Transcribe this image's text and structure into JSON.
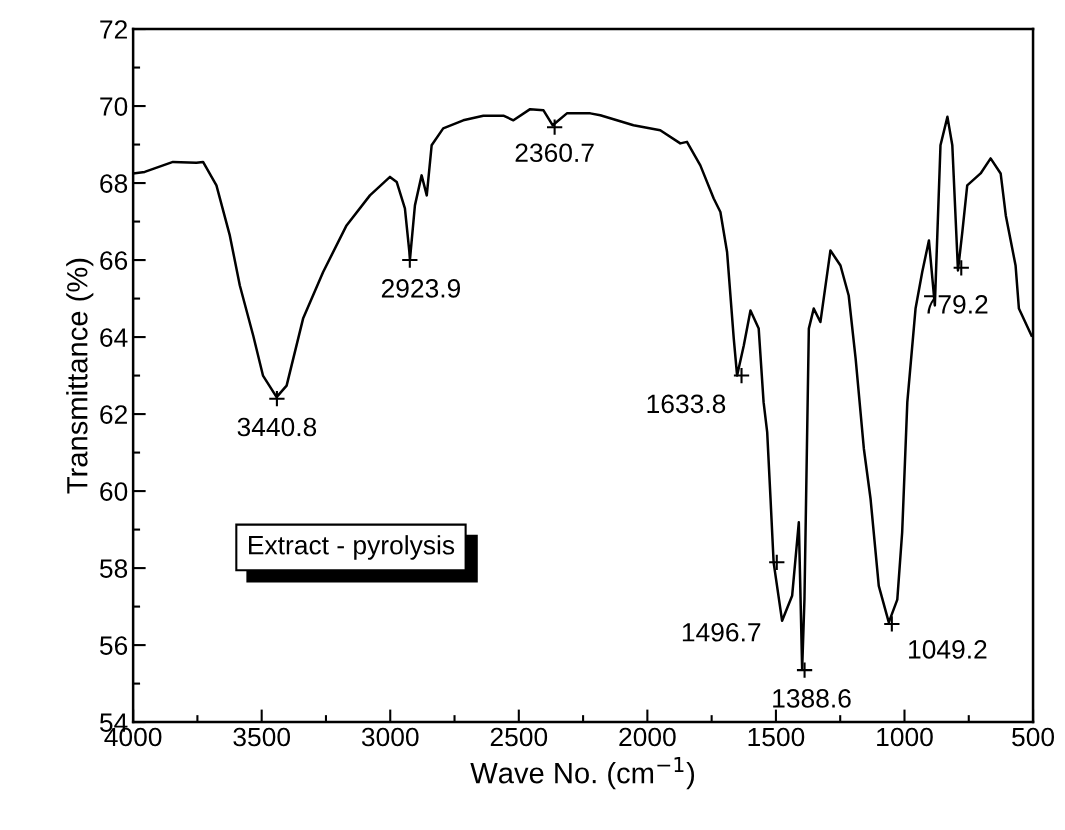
{
  "chart_data": {
    "type": "line",
    "xlabel": "Wave No. (cm$^{−1}$)",
    "ylabel": "Transmittance (%)",
    "xlim": [
      4000,
      500
    ],
    "xticks": [
      4000,
      3500,
      3000,
      2500,
      2000,
      1500,
      1000,
      500
    ],
    "ylim": [
      54,
      72
    ],
    "yticks": [
      54,
      56,
      58,
      60,
      62,
      64,
      66,
      68,
      70,
      72
    ],
    "grid": false,
    "legend": "lower left",
    "marker": "none",
    "line_style": "solid",
    "series": [
      {
        "name": "Extract - pyrolysis",
        "color": "#000000",
        "x": [
          4000,
          3955,
          3845,
          3754,
          3728,
          3676,
          3624,
          3585,
          3533,
          3495,
          3442,
          3403,
          3339,
          3261,
          3170,
          3079,
          3001,
          2975,
          2943,
          2923,
          2904,
          2878,
          2858,
          2839,
          2794,
          2716,
          2638,
          2560,
          2521,
          2456,
          2404,
          2368,
          2313,
          2222,
          2183,
          2054,
          1950,
          1872,
          1846,
          1794,
          1742,
          1716,
          1690,
          1664,
          1651,
          1625,
          1599,
          1567,
          1548,
          1534,
          1521,
          1509,
          1476,
          1437,
          1411,
          1398,
          1389,
          1372,
          1353,
          1327,
          1288,
          1249,
          1217,
          1190,
          1158,
          1132,
          1100,
          1061,
          1028,
          1009,
          989,
          957,
          931,
          905,
          882,
          860,
          833,
          814,
          792,
          775,
          756,
          704,
          665,
          626,
          606,
          568,
          555,
          506
        ],
        "values": [
          68.25,
          68.29,
          68.55,
          68.53,
          68.55,
          67.94,
          66.64,
          65.34,
          64.04,
          63.0,
          62.44,
          62.74,
          64.48,
          65.69,
          66.9,
          67.68,
          68.16,
          68.03,
          67.34,
          66.04,
          67.42,
          68.2,
          67.68,
          68.98,
          69.42,
          69.63,
          69.75,
          69.75,
          69.63,
          69.92,
          69.89,
          69.5,
          69.81,
          69.81,
          69.76,
          69.5,
          69.37,
          69.03,
          69.07,
          68.46,
          67.6,
          67.25,
          66.21,
          63.96,
          63.0,
          63.78,
          64.69,
          64.22,
          62.31,
          61.53,
          59.8,
          58.15,
          56.63,
          57.28,
          59.19,
          55.38,
          57.2,
          64.22,
          64.74,
          64.39,
          66.25,
          65.86,
          65.08,
          63.44,
          61.1,
          59.8,
          57.54,
          56.59,
          57.18,
          58.93,
          62.31,
          64.74,
          65.69,
          66.51,
          64.82,
          68.98,
          69.72,
          68.98,
          65.73,
          66.73,
          67.94,
          68.25,
          68.64,
          68.25,
          67.16,
          65.86,
          64.74,
          64.04
        ]
      }
    ],
    "annotations": [
      {
        "text": "3440.8",
        "x": 3440.8,
        "y": 62.4
      },
      {
        "text": "2923.9",
        "x": 2923.9,
        "y": 66.0
      },
      {
        "text": "2360.7",
        "x": 2360.7,
        "y": 69.45
      },
      {
        "text": "1633.8",
        "x": 1633.8,
        "y": 63.0
      },
      {
        "text": "1496.7",
        "x": 1496.7,
        "y": 58.15
      },
      {
        "text": "1388.6",
        "x": 1388.6,
        "y": 55.35
      },
      {
        "text": "1049.2",
        "x": 1049.2,
        "y": 56.55
      },
      {
        "text": "779.2",
        "x": 779.2,
        "y": 65.8
      }
    ]
  }
}
